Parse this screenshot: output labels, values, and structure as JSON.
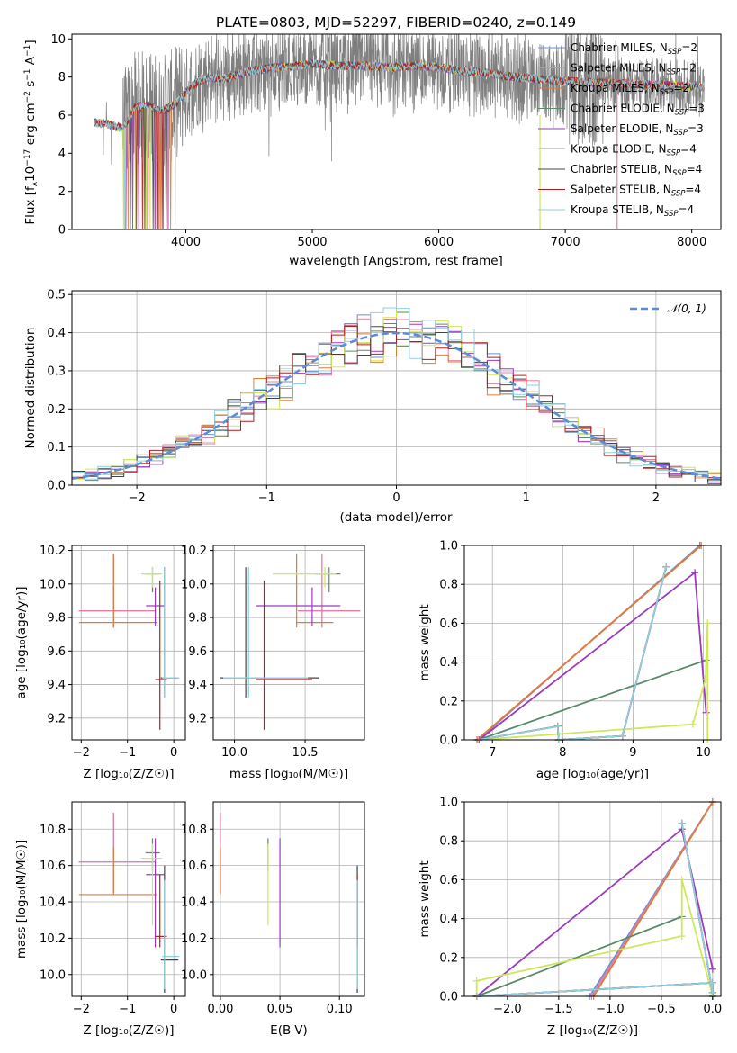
{
  "figure": {
    "title": "PLATE=0803, MJD=52297, FIBERID=0240, z=0.149"
  },
  "models": [
    {
      "name": "Chabrier MILES, N_SSP=2",
      "label_main": "Chabrier MILES, N",
      "label_sub": "SSP",
      "label_tail": "=2",
      "color": "#6b8ed6"
    },
    {
      "name": "Salpeter MILES, N_SSP=2",
      "label_main": "Salpeter MILES, N",
      "label_sub": "SSP",
      "label_tail": "=2",
      "color": "#e67fa8"
    },
    {
      "name": "Kroupa MILES, N_SSP=2",
      "label_main": "Kroupa MILES, N",
      "label_sub": "SSP",
      "label_tail": "=2",
      "color": "#e07b39"
    },
    {
      "name": "Chabrier ELODIE, N_SSP=3",
      "label_main": "Chabrier ELODIE, N",
      "label_sub": "SSP",
      "label_tail": "=3",
      "color": "#5a8a6a"
    },
    {
      "name": "Salpeter ELODIE, N_SSP=3",
      "label_main": "Salpeter ELODIE, N",
      "label_sub": "SSP",
      "label_tail": "=3",
      "color": "#9a3bbd"
    },
    {
      "name": "Kroupa ELODIE, N_SSP=4",
      "label_main": "Kroupa ELODIE, N",
      "label_sub": "SSP",
      "label_tail": "=4",
      "color": "#cde85a"
    },
    {
      "name": "Chabrier STELIB, N_SSP=4",
      "label_main": "Chabrier STELIB, N",
      "label_sub": "SSP",
      "label_tail": "=4",
      "color": "#444444"
    },
    {
      "name": "Salpeter STELIB, N_SSP=4",
      "label_main": "Salpeter STELIB, N",
      "label_sub": "SSP",
      "label_tail": "=4",
      "color": "#b01f1f"
    },
    {
      "name": "Kroupa STELIB, N_SSP=4",
      "label_main": "Kroupa STELIB, N",
      "label_sub": "SSP",
      "label_tail": "=4",
      "color": "#8ecfe3"
    }
  ],
  "chart_data": [
    {
      "type": "line",
      "id": "spectrum",
      "xlabel": "wavelength [Angstrom, rest frame]",
      "ylabel_parts": [
        "Flux [f",
        "λ",
        "10",
        "−17",
        " erg cm",
        "−2",
        " s",
        "−1",
        " A",
        "−1",
        "]"
      ],
      "xlim": [
        3100,
        8230
      ],
      "ylim": [
        0,
        10.25
      ],
      "xticks": [
        4000,
        5000,
        6000,
        7000,
        8000
      ],
      "yticks": [
        0,
        2,
        4,
        6,
        8,
        10
      ],
      "data_color": "#7f7f7f",
      "model_continuum": {
        "x": [
          3280,
          3400,
          3500,
          3600,
          3700,
          3800,
          3900,
          4000,
          4100,
          4200,
          4300,
          4500,
          4700,
          4900,
          5000,
          5200,
          5400,
          5600,
          5800,
          6000,
          6200,
          6400,
          6600,
          6800,
          7000,
          7200,
          7400,
          7600,
          7800,
          8000,
          8100
        ],
        "y": [
          5.6,
          5.5,
          5.3,
          6.4,
          6.5,
          6.2,
          6.5,
          7.2,
          7.8,
          8.0,
          7.9,
          8.3,
          8.5,
          8.6,
          8.7,
          8.6,
          8.6,
          8.5,
          8.6,
          8.5,
          8.3,
          8.2,
          8.0,
          7.9,
          7.8,
          7.7,
          7.7,
          7.6,
          7.6,
          7.5,
          7.5
        ]
      }
    },
    {
      "type": "bar",
      "id": "residuals",
      "xlabel": "(data-model)/error",
      "ylabel": "Normed distribution",
      "xlim": [
        -2.5,
        2.5
      ],
      "ylim": [
        0,
        0.51
      ],
      "xticks": [
        -2,
        -1,
        0,
        1,
        2
      ],
      "yticks": [
        0.0,
        0.1,
        0.2,
        0.3,
        0.4,
        0.5
      ],
      "bin_width": 0.1,
      "legend": "𝒩(0, 1)",
      "legend_position": "top-right",
      "grid": true
    },
    {
      "type": "scatter",
      "id": "age-vs-Z",
      "xlabel": "Z [log₁₀(Z/Z☉)]",
      "ylabel": "age  [log₁₀(age/yr)]",
      "xlim": [
        -2.2,
        0.25
      ],
      "ylim": [
        9.07,
        10.23
      ],
      "xticks": [
        -2,
        -1,
        0
      ],
      "yticks": [
        9.2,
        9.4,
        9.6,
        9.8,
        10.0,
        10.2
      ]
    },
    {
      "type": "scatter",
      "id": "age-vs-mass",
      "xlabel": "mass [log₁₀(M/M☉)]",
      "xlim": [
        9.85,
        10.92
      ],
      "ylim": [
        9.07,
        10.23
      ],
      "xticks": [
        10.0,
        10.5
      ],
      "yticks": [
        9.2,
        9.4,
        9.6,
        9.8,
        10.0,
        10.2
      ]
    },
    {
      "type": "line",
      "id": "weight-vs-age",
      "xlabel": "age  [log₁₀(age/yr)]",
      "ylabel": "mass weight",
      "xlim": [
        6.6,
        10.25
      ],
      "ylim": [
        0,
        1.0
      ],
      "xticks": [
        7,
        8,
        9,
        10
      ],
      "yticks": [
        0.0,
        0.2,
        0.4,
        0.6,
        0.8,
        1.0
      ]
    },
    {
      "type": "scatter",
      "id": "mass-vs-Z",
      "xlabel": "Z [log₁₀(Z/Z☉)]",
      "ylabel": "mass [log₁₀(M/M☉)]",
      "xlim": [
        -2.2,
        0.25
      ],
      "ylim": [
        9.88,
        10.95
      ],
      "xticks": [
        -2,
        -1,
        0
      ],
      "yticks": [
        10.0,
        10.2,
        10.4,
        10.6,
        10.8
      ]
    },
    {
      "type": "scatter",
      "id": "mass-vs-ebv",
      "xlabel": "E(B-V)",
      "xlim": [
        -0.006,
        0.121
      ],
      "ylim": [
        9.88,
        10.95
      ],
      "xticks": [
        0.0,
        0.05,
        0.1
      ],
      "yticks": [
        10.0,
        10.2,
        10.4,
        10.6,
        10.8
      ]
    },
    {
      "type": "line",
      "id": "weight-vs-Z",
      "xlabel": "Z [log₁₀(Z/Z☉)]",
      "ylabel": "mass weight",
      "xlim": [
        -2.42,
        0.08
      ],
      "ylim": [
        0,
        1.0
      ],
      "xticks": [
        -2.0,
        -1.5,
        -1.0,
        -0.5,
        0.0
      ],
      "yticks": [
        0.0,
        0.2,
        0.4,
        0.6,
        0.8,
        1.0
      ]
    }
  ],
  "fits": [
    {
      "age": 9.84,
      "age_err": [
        9.74,
        10.18
      ],
      "Z": -1.3,
      "Z_err": [
        -2.05,
        -0.4
      ],
      "mass": 10.62,
      "mass_err": [
        10.45,
        10.89
      ],
      "ebv": 0.0,
      "ssp_age": [
        6.8,
        9.95
      ],
      "ssp_Z": [
        -1.2,
        0.0
      ],
      "ssp_w": [
        0.0,
        1.0
      ]
    },
    {
      "age": 9.84,
      "age_err": [
        9.74,
        10.18
      ],
      "Z": -1.3,
      "Z_err": [
        -2.05,
        -0.4
      ],
      "mass": 10.62,
      "mass_err": [
        10.45,
        10.89
      ],
      "ebv": 0.0,
      "ssp_age": [
        6.78,
        9.97
      ],
      "ssp_Z": [
        -1.18,
        0.0
      ],
      "ssp_w": [
        0.0,
        1.0
      ]
    },
    {
      "age": 9.77,
      "age_err": [
        9.74,
        10.18
      ],
      "Z": -1.3,
      "Z_err": [
        -2.05,
        -0.35
      ],
      "mass": 10.44,
      "mass_err": [
        10.44,
        10.7
      ],
      "ebv": 0.0,
      "ssp_age": [
        6.78,
        9.97
      ],
      "ssp_Z": [
        -1.16,
        0.0
      ],
      "ssp_w": [
        0.0,
        1.0
      ]
    },
    {
      "age": 10.06,
      "age_err": [
        9.95,
        10.1
      ],
      "Z": -0.46,
      "Z_err": [
        -0.61,
        -0.3
      ],
      "mass": 10.67,
      "mass_err": [
        10.57,
        10.75
      ],
      "ebv": 0.04,
      "ssp_age": [
        6.8,
        10.04
      ],
      "ssp_Z": [
        -2.3,
        -0.3
      ],
      "ssp_w": [
        0.0,
        0.41
      ]
    },
    {
      "age": 9.87,
      "age_err": [
        9.75,
        9.98
      ],
      "Z": -0.4,
      "Z_err": [
        -0.6,
        -0.2
      ],
      "mass": 10.55,
      "mass_err": [
        10.15,
        10.75
      ],
      "ebv": 0.05,
      "ssp_age": [
        6.81,
        9.88,
        10.04
      ],
      "ssp_Z": [
        -2.3,
        -0.3,
        0.0
      ],
      "ssp_w": [
        0.0,
        0.86,
        0.14
      ]
    },
    {
      "age": 10.06,
      "age_err": [
        9.98,
        10.1
      ],
      "Z": -0.46,
      "Z_err": [
        -0.7,
        -0.25
      ],
      "mass": 10.64,
      "mass_err": [
        10.27,
        10.72
      ],
      "ebv": 0.04,
      "ssp_age": [
        6.8,
        9.85,
        10.03,
        10.06,
        10.06
      ],
      "ssp_Z": [
        -2.3,
        -2.3,
        -0.3,
        -0.3,
        0.0
      ],
      "ssp_w": [
        0.0,
        0.08,
        0.31,
        0.6,
        0.0
      ]
    },
    {
      "age": 9.44,
      "age_err": [
        9.32,
        10.1
      ],
      "Z": -0.2,
      "Z_err": [
        -0.28,
        0.1
      ],
      "mass": 10.08,
      "mass_err": [
        9.9,
        10.6
      ],
      "ebv": 0.115,
      "ssp_age": [
        6.8,
        7.93,
        7.94,
        8.85,
        9.47
      ],
      "ssp_Z": [
        -2.3,
        0.0,
        0.0,
        0.0,
        -0.3
      ],
      "ssp_w": [
        0.0,
        0.07,
        0.0,
        0.02,
        0.89
      ]
    },
    {
      "age": 9.43,
      "age_err": [
        9.13,
        10.02
      ],
      "Z": -0.3,
      "Z_err": [
        -0.4,
        -0.15
      ],
      "mass": 10.21,
      "mass_err": [
        10.15,
        10.55
      ],
      "ebv": 0.115,
      "ssp_age": [
        6.8,
        7.93,
        7.94,
        8.85,
        9.47
      ],
      "ssp_Z": [
        -2.3,
        0.0,
        0.0,
        0.0,
        -0.3
      ],
      "ssp_w": [
        0.0,
        0.07,
        0.0,
        0.02,
        0.89
      ]
    },
    {
      "age": 9.44,
      "age_err": [
        9.32,
        10.1
      ],
      "Z": -0.2,
      "Z_err": [
        -0.25,
        0.12
      ],
      "mass": 10.1,
      "mass_err": [
        9.92,
        10.52
      ],
      "ebv": 0.115,
      "ssp_age": [
        6.8,
        7.93,
        7.94,
        8.85,
        9.47
      ],
      "ssp_Z": [
        -2.3,
        0.0,
        0.0,
        0.0,
        -0.3
      ],
      "ssp_w": [
        0.0,
        0.07,
        0.0,
        0.02,
        0.89
      ]
    }
  ]
}
